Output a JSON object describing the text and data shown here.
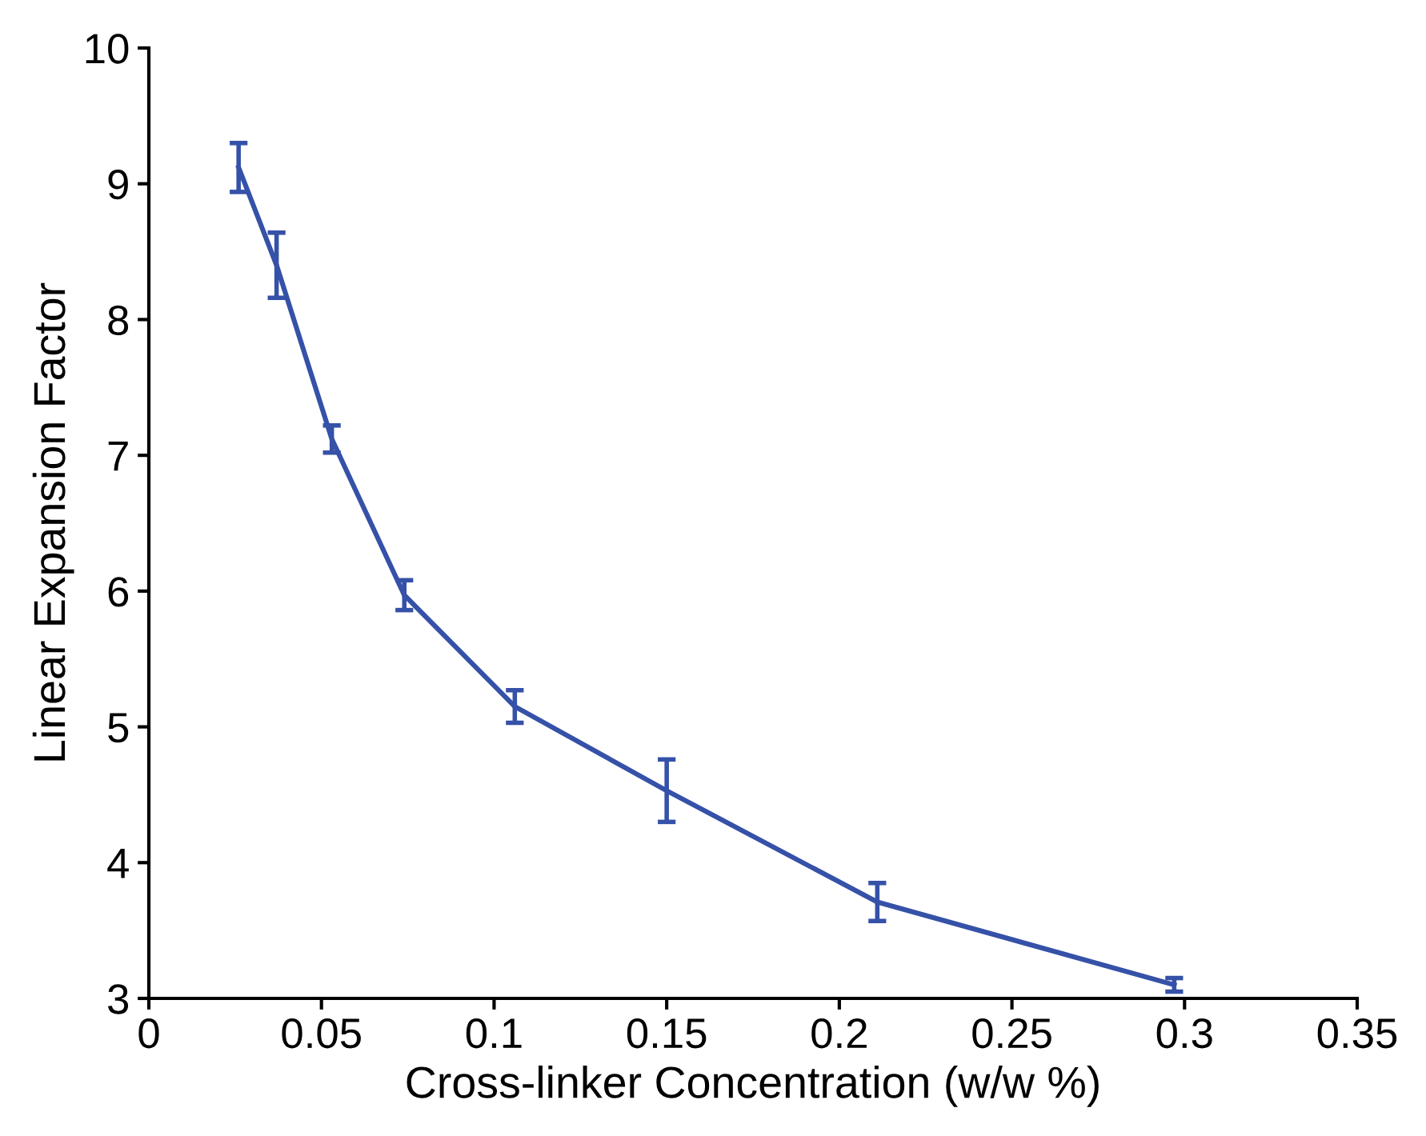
{
  "chart_data": {
    "type": "line",
    "xlabel": "Cross-linker Concentration (w/w %)",
    "ylabel": "Linear Expansion Factor",
    "x": [
      0.026,
      0.037,
      0.053,
      0.074,
      0.106,
      0.15,
      0.211,
      0.297
    ],
    "series": [
      {
        "color": "#3551a8",
        "values": [
          9.12,
          8.4,
          7.12,
          5.97,
          5.15,
          4.53,
          3.71,
          3.1
        ],
        "errors": [
          0.18,
          0.24,
          0.1,
          0.11,
          0.12,
          0.23,
          0.14,
          0.05
        ]
      }
    ],
    "xlim": [
      0,
      0.35
    ],
    "xticks": [
      0,
      0.05,
      0.1,
      0.15,
      0.2,
      0.25,
      0.3,
      0.35
    ],
    "ylim": [
      3,
      10
    ],
    "yticks": [
      3,
      4,
      5,
      6,
      7,
      8,
      9,
      10
    ],
    "grid": false,
    "marker": "none",
    "line_style": "solid"
  }
}
